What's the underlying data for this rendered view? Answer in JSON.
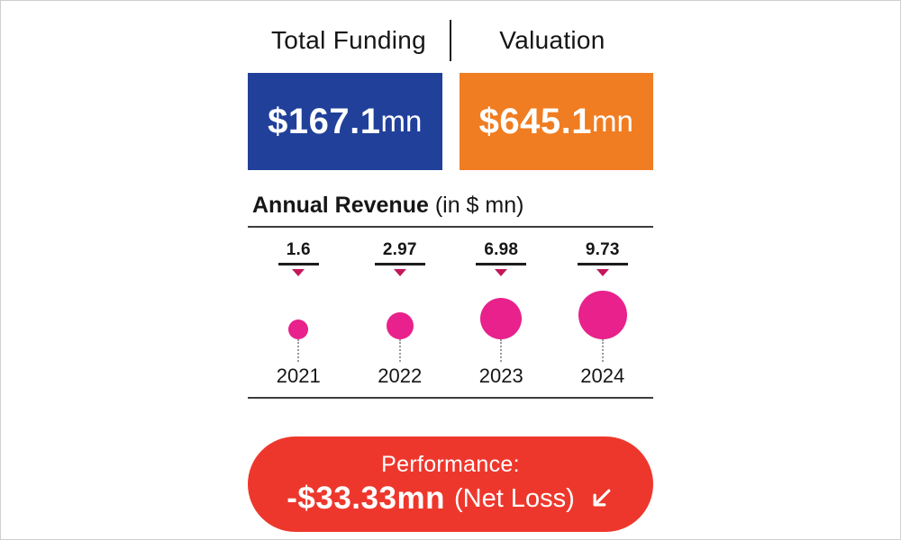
{
  "funding": {
    "label": "Total Funding",
    "value": "$167.1",
    "unit": "mn",
    "color": "#21409A"
  },
  "valuation": {
    "label": "Valuation",
    "value": "$645.1",
    "unit": "mn",
    "color": "#F07D22"
  },
  "chart_data": {
    "type": "bubble",
    "title": "Annual Revenue",
    "subtitle": "(in $ mn)",
    "categories": [
      "2021",
      "2022",
      "2023",
      "2024"
    ],
    "values": [
      1.6,
      2.97,
      6.98,
      9.73
    ],
    "value_labels": [
      "1.6",
      "2.97",
      "6.98",
      "9.73"
    ],
    "bubble_color": "#E8218C",
    "caret_color": "#C2185B",
    "grid": false,
    "legend": "none"
  },
  "performance": {
    "label": "Performance:",
    "value": "-$33.33mn",
    "suffix": "(Net Loss)",
    "icon": "down-left-arrow",
    "color": "#EE372C"
  }
}
